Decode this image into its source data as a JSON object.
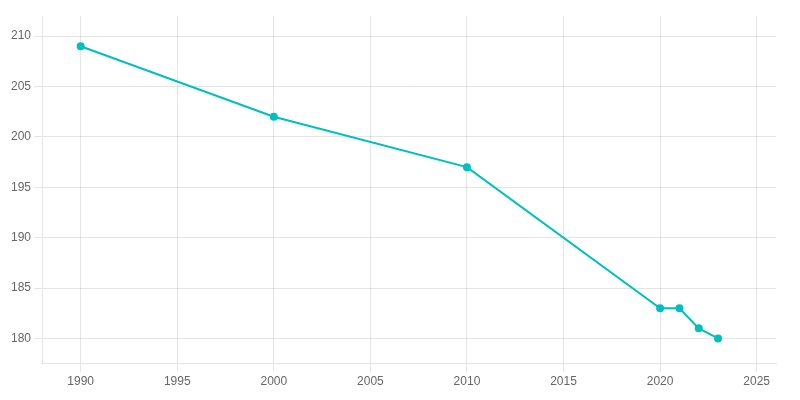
{
  "chart_data": {
    "type": "line",
    "x": [
      1990,
      2000,
      2010,
      2020,
      2021,
      2022,
      2023
    ],
    "values": [
      209,
      202,
      197,
      183,
      183,
      181,
      180
    ],
    "color": "#00BFBF",
    "marker": "circle",
    "xlim": [
      1988,
      2026
    ],
    "xticks": [
      1990,
      1995,
      2000,
      2005,
      2010,
      2015,
      2020,
      2025
    ],
    "ylim": [
      177.5,
      212
    ],
    "yticks": [
      180,
      185,
      190,
      195,
      200,
      205,
      210
    ],
    "grid": true
  }
}
